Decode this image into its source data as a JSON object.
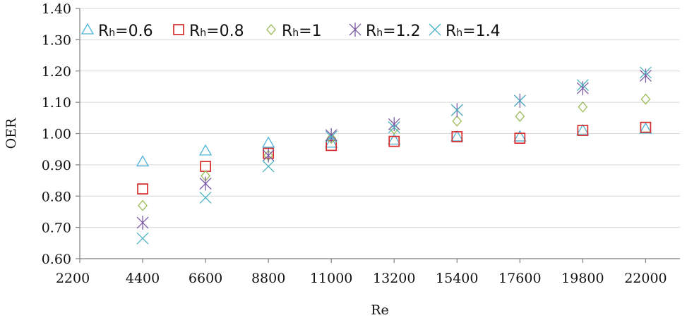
{
  "chart_data": {
    "type": "scatter",
    "title": "",
    "xlabel": "Re",
    "ylabel": "OER",
    "x_ticks": [
      2200,
      4400,
      6600,
      8800,
      11000,
      13200,
      15400,
      17600,
      19800,
      22000
    ],
    "x_tick_labels": [
      "2200",
      "4400",
      "6600",
      "8800",
      "11000",
      "13200",
      "15400",
      "17600",
      "19800",
      "22000"
    ],
    "y_ticks": [
      0.6,
      0.7,
      0.8,
      0.9,
      1.0,
      1.1,
      1.2,
      1.3,
      1.4
    ],
    "y_tick_labels": [
      "0.60",
      "0.70",
      "0.80",
      "0.90",
      "1.00",
      "1.10",
      "1.20",
      "1.30",
      "1.40"
    ],
    "xlim": [
      2200,
      23200
    ],
    "ylim": [
      0.6,
      1.4
    ],
    "grid": "horizontal",
    "legend_position": "top-left",
    "x": [
      4400,
      6600,
      8800,
      11000,
      13200,
      15400,
      17600,
      19800,
      22000
    ],
    "series": [
      {
        "name": "Rh=0.6",
        "legend_main": "R",
        "legend_sub": "h",
        "legend_value": "=0.6",
        "marker": "triangle-icon",
        "color": "#4BB3D8",
        "values": [
          0.91,
          0.945,
          0.97,
          0.97,
          0.98,
          0.99,
          0.99,
          1.01,
          1.015
        ]
      },
      {
        "name": "Rh=0.8",
        "legend_main": "R",
        "legend_sub": "h",
        "legend_value": "=0.8",
        "marker": "square-icon",
        "color": "#D62C2C",
        "values": [
          0.823,
          0.895,
          0.937,
          0.962,
          0.975,
          0.99,
          0.985,
          1.01,
          1.02
        ]
      },
      {
        "name": "Rh=1",
        "legend_main": "R",
        "legend_sub": "h",
        "legend_value": "=1",
        "marker": "diamond-icon",
        "color": "#9BBB59",
        "values": [
          0.77,
          0.865,
          0.93,
          0.985,
          1.015,
          1.04,
          1.055,
          1.085,
          1.11
        ]
      },
      {
        "name": "Rh=1.2",
        "legend_main": "R",
        "legend_sub": "h",
        "legend_value": "=1.2",
        "marker": "asterisk-icon",
        "color": "#7B5AA6",
        "values": [
          0.715,
          0.84,
          0.93,
          0.995,
          1.03,
          1.075,
          1.105,
          1.145,
          1.185
        ]
      },
      {
        "name": "Rh=1.4",
        "legend_main": "R",
        "legend_sub": "h",
        "legend_value": "=1.4",
        "marker": "x-icon",
        "color": "#4BB3C2",
        "values": [
          0.665,
          0.795,
          0.895,
          0.99,
          1.02,
          1.075,
          1.105,
          1.155,
          1.195
        ]
      }
    ]
  }
}
